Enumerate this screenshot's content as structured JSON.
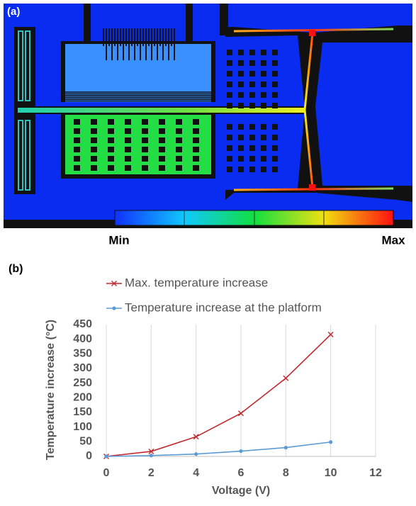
{
  "panel_a": {
    "label": "(a)",
    "min_label": "Min",
    "max_label": "Max"
  },
  "panel_b": {
    "label": "(b)"
  },
  "chart_data": {
    "type": "line",
    "x_label": "Voltage (V)",
    "y_label": "Temperature increase (°C)",
    "x": [
      0,
      2,
      4,
      6,
      8,
      10
    ],
    "series": [
      {
        "name": "Max. temperature increase",
        "color": "#c0282d",
        "marker": "x",
        "values": [
          0,
          17,
          67,
          147,
          267,
          416
        ]
      },
      {
        "name": "Temperature increase at the platform",
        "color": "#5b9bd5",
        "marker": "circle",
        "values": [
          0,
          3,
          8,
          18,
          30,
          49
        ]
      }
    ],
    "xlim": [
      0,
      12
    ],
    "xticks": [
      0,
      2,
      4,
      6,
      8,
      10,
      12
    ],
    "ylim": [
      0,
      450
    ],
    "yticks": [
      0,
      50,
      100,
      150,
      200,
      250,
      300,
      350,
      400,
      450
    ],
    "grid": "x",
    "legend": "top"
  }
}
